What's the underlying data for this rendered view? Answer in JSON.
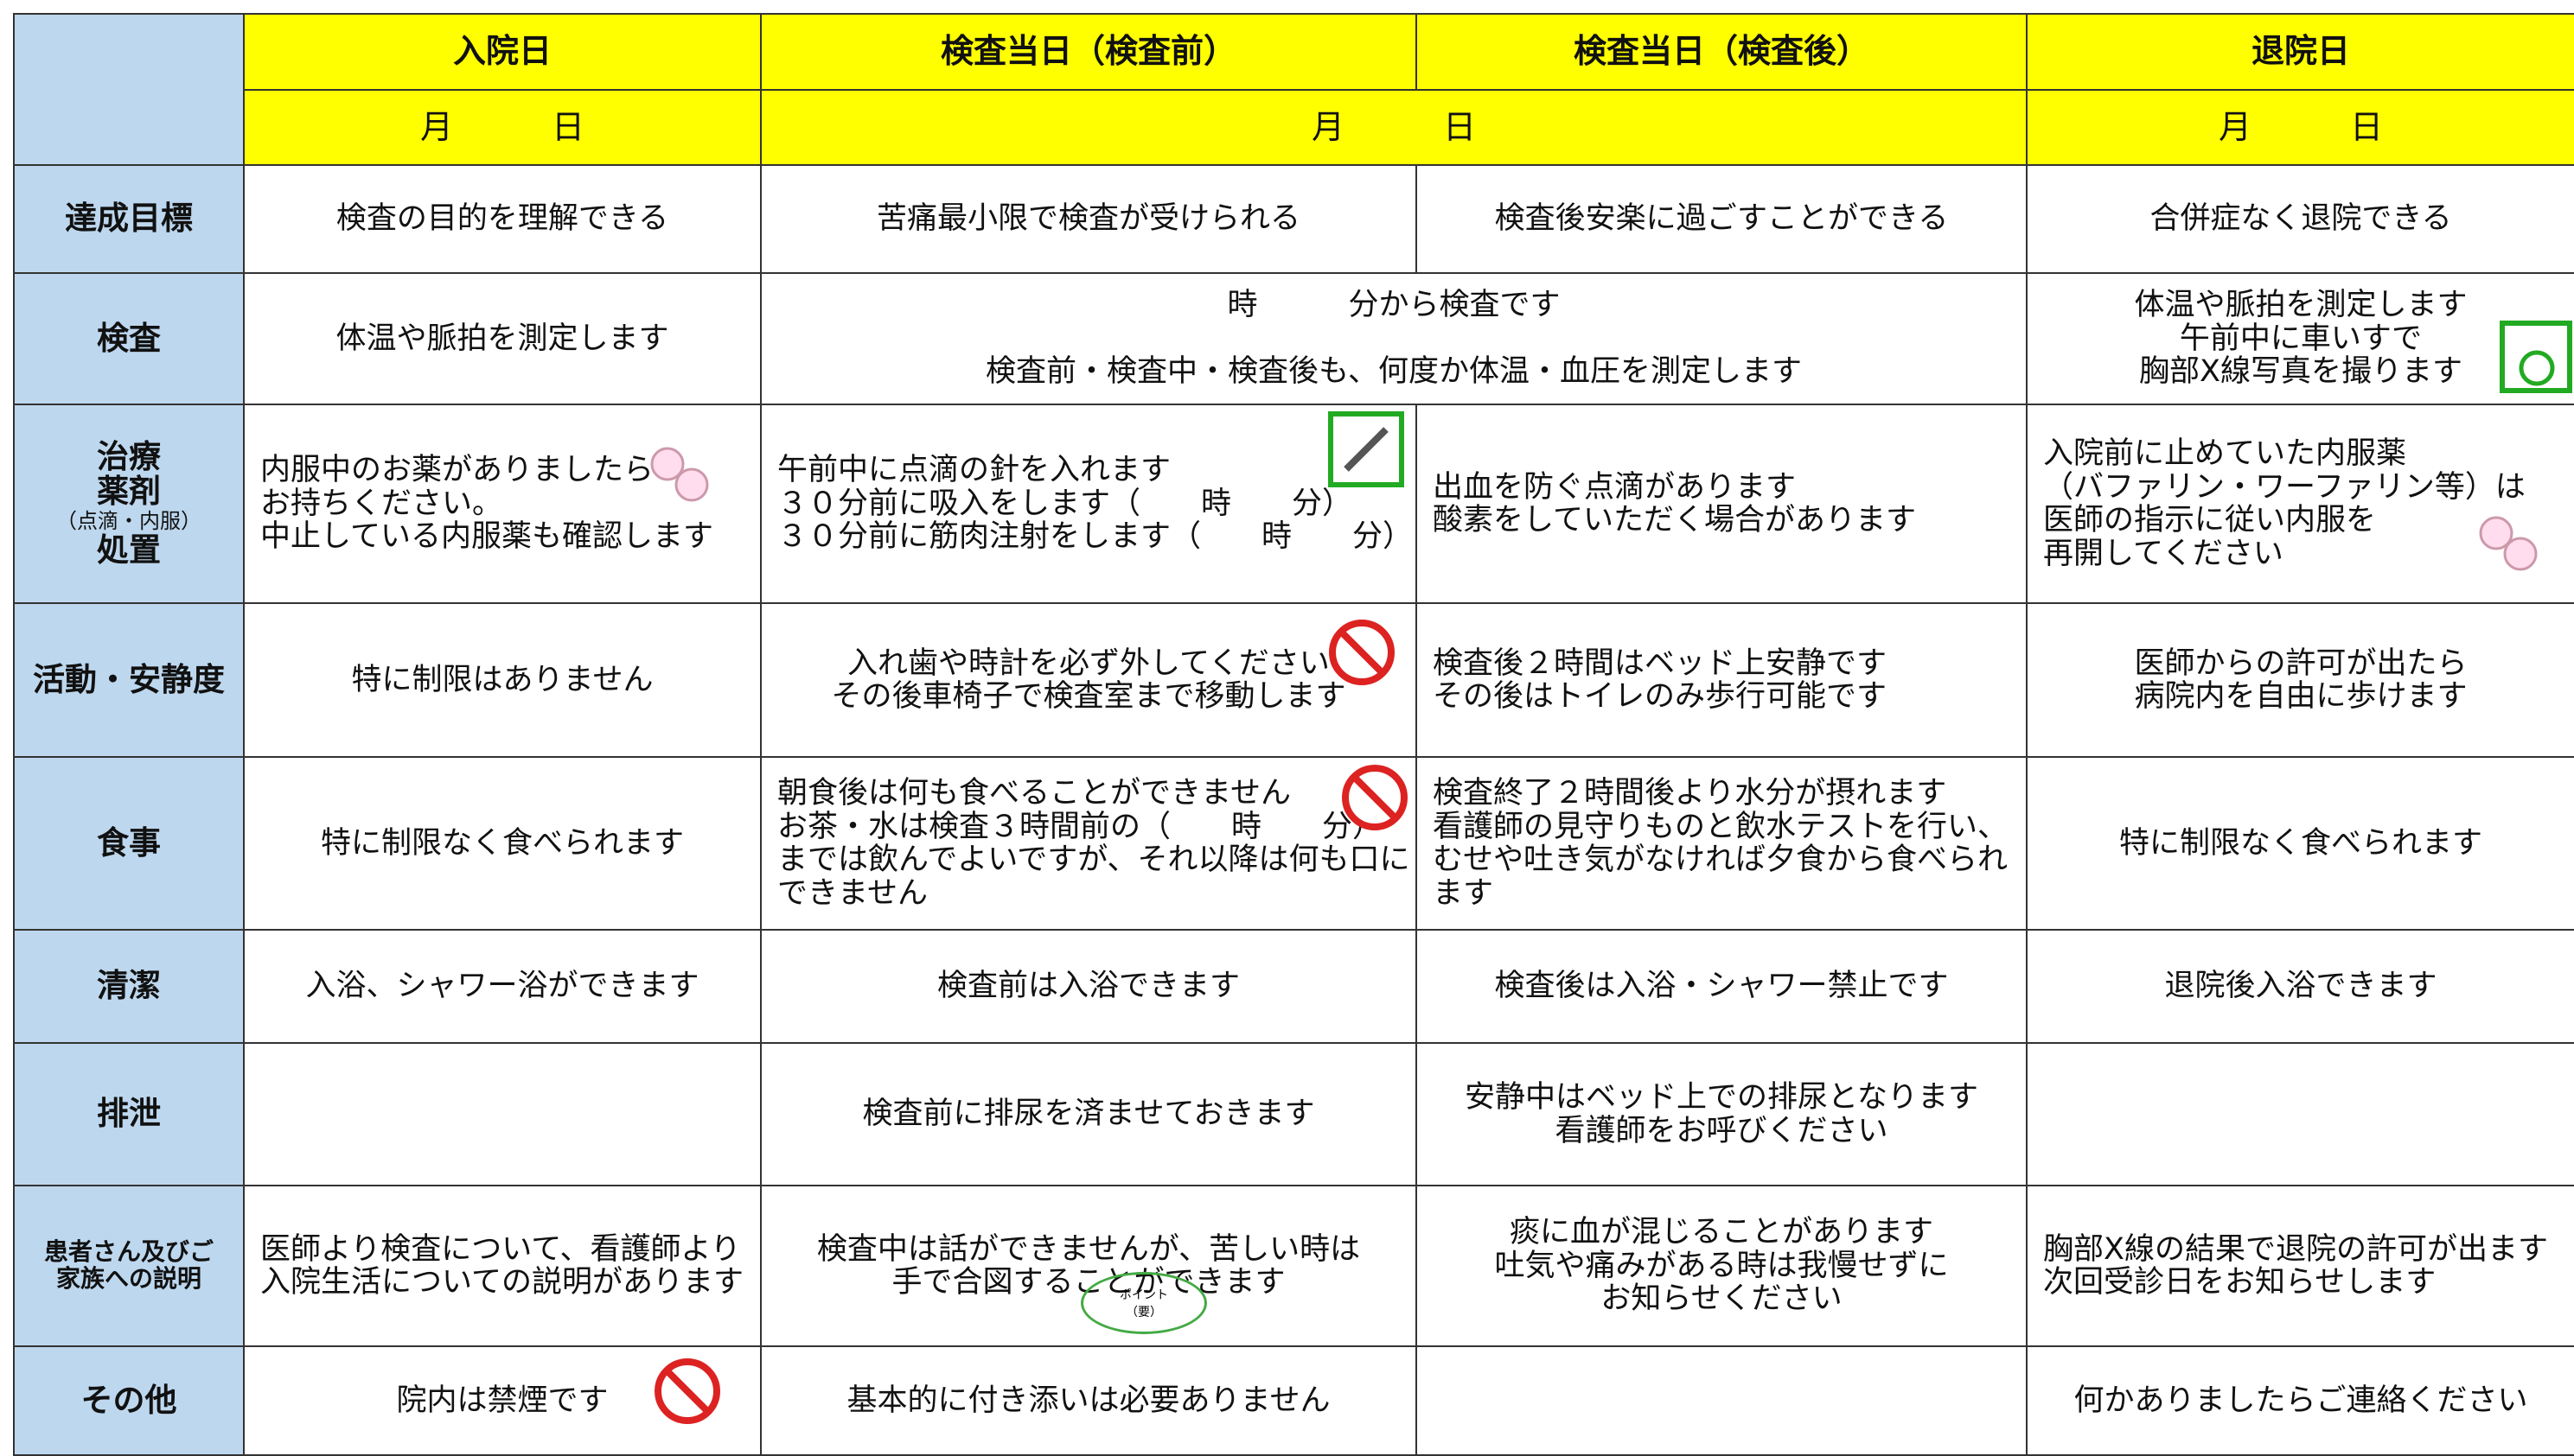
{
  "header": {
    "columns": [
      "入院日",
      "検査当日（検査前）",
      "検査当日（検査後）",
      "退院日"
    ],
    "dates": [
      "月　　　日",
      "月　　　日",
      "月　　　日"
    ]
  },
  "rows": [
    {
      "label": "達成目標",
      "cells": [
        "検査の目的を理解できる",
        "苦痛最小限で検査が受けられる",
        "検査後安楽に過ごすことができる",
        "合併症なく退院できる"
      ]
    },
    {
      "label": "検査",
      "cells": [
        "体温や脈拍を測定します",
        "時　　　分から検査です\n\n検査前・検査中・検査後も、何度か体温・血圧を測定します",
        "体温や脈拍を測定します\n午前中に車いすで\n胸部X線写真を撮ります"
      ]
    },
    {
      "label": [
        "治療",
        "薬剤",
        "（点滴・内服）",
        "処置"
      ],
      "cells": [
        "内服中のお薬がありましたら\nお持ちください。\n中止している内服薬も確認します",
        "午前中に点滴の針を入れます\n３０分前に吸入をします（　　時　　分）\n３０分前に筋肉注射をします（　　時　　分）",
        "出血を防ぐ点滴があります\n酸素をしていただく場合があります",
        "入院前に止めていた内服薬\n（バファリン・ワーファリン等）は\n医師の指示に従い内服を\n再開してください"
      ]
    },
    {
      "label": "活動・安静度",
      "cells": [
        "特に制限はありません",
        "入れ歯や時計を必ず外してください\nその後車椅子で検査室まで移動します",
        "検査後２時間はベッド上安静です\nその後はトイレのみ歩行可能です",
        "医師からの許可が出たら\n病院内を自由に歩けます"
      ]
    },
    {
      "label": "食事",
      "cells": [
        "特に制限なく食べられます",
        "朝食後は何も食べることができません\nお茶・水は検査３時間前の（　　時　　分）\nまでは飲んでよいですが、それ以降は何も口に\nできません",
        "検査終了２時間後より水分が摂れます\n看護師の見守りものと飲水テストを行い、\nむせや吐き気がなければ夕食から食べられ\nます",
        "特に制限なく食べられます"
      ]
    },
    {
      "label": "清潔",
      "cells": [
        "入浴、シャワー浴ができます",
        "検査前は入浴できます",
        "検査後は入浴・シャワー禁止です",
        "退院後入浴できます"
      ]
    },
    {
      "label": "排泄",
      "cells": [
        null,
        "検査前に排尿を済ませておきます",
        "安静中はベッド上での排尿となります\n看護師をお呼びください",
        null
      ]
    },
    {
      "label": "患者さん及びご\n家族への説明",
      "cells": [
        "医師より検査について、看護師より\n入院生活についての説明があります",
        "検査中は話ができませんが、苦しい時は\n手で合図することができます",
        "痰に血が混じることがあります\n吐気や痛みがある時は我慢せずに\nお知らせください",
        "胸部X線の結果で退院の許可が出ます\n次回受診日をお知らせします"
      ]
    },
    {
      "label": "その他",
      "cells": [
        "院内は禁煙です",
        "基本的に付き添いは必要ありません",
        null,
        "何かありましたらご連絡ください"
      ]
    }
  ],
  "point_badge": "ポイント\n（要）"
}
